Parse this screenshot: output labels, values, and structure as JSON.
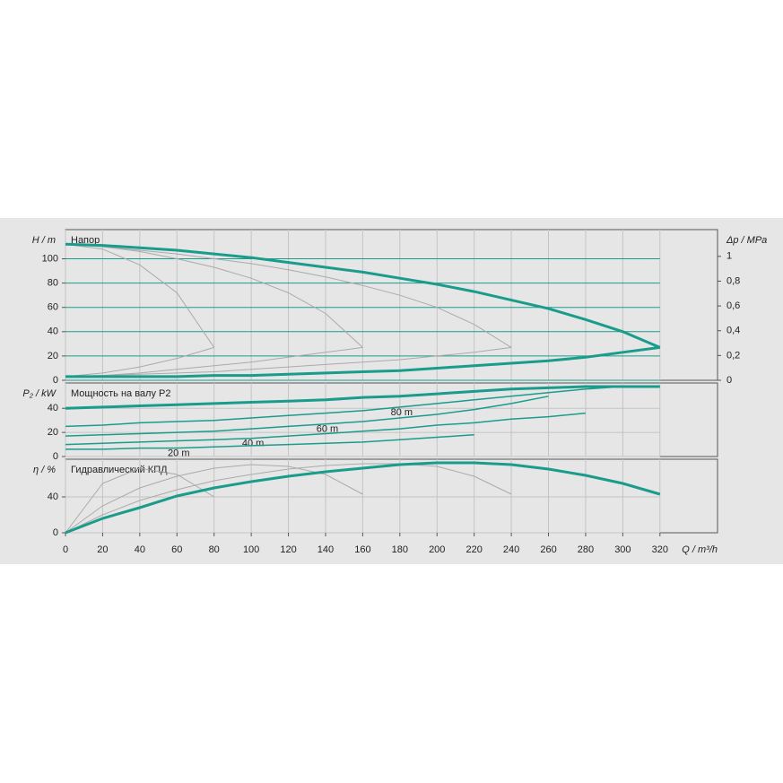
{
  "chart_data": [
    {
      "type": "line",
      "y_label": "H / m",
      "title": "Напор",
      "y2_label": "Δp / MPa",
      "xlim": [
        0,
        351
      ],
      "ylim": [
        0,
        124
      ],
      "yticks": [
        0,
        20,
        40,
        60,
        80,
        100
      ],
      "y2lim": [
        0,
        1.216
      ],
      "y2ticks": [
        0,
        {
          "value": 0.2,
          "label": "0,2"
        },
        {
          "value": 0.4,
          "label": "0,4"
        },
        {
          "value": 0.6,
          "label": "0,6"
        },
        {
          "value": 0.8,
          "label": "0,8"
        },
        1
      ],
      "grid": true,
      "grid_color": "#1a9c8c",
      "x": [
        0,
        20,
        40,
        60,
        80,
        100,
        120,
        140,
        160,
        180,
        200,
        220,
        240,
        260,
        280,
        300,
        320
      ],
      "series": [
        {
          "color": "#aaaaaa",
          "line_width": 1,
          "values": [
            112,
            108,
            95,
            72,
            27,
            null,
            null,
            null,
            null,
            null,
            null,
            null,
            null,
            null,
            null,
            null,
            null
          ]
        },
        {
          "color": "#aaaaaa",
          "line_width": 1,
          "values": [
            112,
            110,
            106,
            100,
            93,
            84,
            72,
            55,
            27,
            null,
            null,
            null,
            null,
            null,
            null,
            null,
            null
          ]
        },
        {
          "color": "#aaaaaa",
          "line_width": 1,
          "values": [
            112,
            110,
            107,
            104,
            100,
            96,
            91,
            85,
            78,
            70,
            60,
            46,
            27,
            null,
            null,
            null,
            null
          ]
        },
        {
          "color": "#aaaaaa",
          "line_width": 1,
          "values": [
            3,
            6,
            11,
            18,
            27,
            null,
            null,
            null,
            null,
            null,
            null,
            null,
            null,
            null,
            null,
            null,
            null
          ]
        },
        {
          "color": "#aaaaaa",
          "line_width": 1,
          "values": [
            3,
            4,
            6,
            9,
            12,
            15,
            19,
            23,
            27,
            null,
            null,
            null,
            null,
            null,
            null,
            null,
            null
          ]
        },
        {
          "color": "#aaaaaa",
          "line_width": 1,
          "values": [
            3,
            4,
            5,
            6,
            7,
            9,
            11,
            13,
            15,
            17,
            20,
            23,
            27,
            null,
            null,
            null,
            null
          ]
        },
        {
          "color": "#1a9c8c",
          "line_width": 3,
          "values": [
            112,
            111,
            109,
            107,
            104,
            101,
            97,
            93,
            89,
            84,
            79,
            73,
            66,
            59,
            50,
            40,
            27
          ]
        },
        {
          "color": "#1a9c8c",
          "line_width": 3,
          "values": [
            3,
            3,
            3,
            3,
            4,
            4,
            5,
            6,
            7,
            8,
            10,
            12,
            14,
            16,
            19,
            23,
            27
          ]
        }
      ]
    },
    {
      "type": "line",
      "y_label": "P₂ / kW",
      "title": "Мощность на валу P2",
      "xlim": [
        0,
        351
      ],
      "ylim": [
        0,
        61
      ],
      "yticks": [
        0,
        20,
        40
      ],
      "grid": true,
      "grid_color": "#c4c4c4",
      "x": [
        0,
        20,
        40,
        60,
        80,
        100,
        120,
        140,
        160,
        180,
        200,
        220,
        240,
        260,
        280,
        300,
        320
      ],
      "series": [
        {
          "color": "#1a9c8c",
          "line_width": 3,
          "values": [
            40,
            41,
            42,
            43,
            44,
            45,
            46,
            47,
            49,
            50,
            52,
            54,
            56,
            57,
            58,
            58,
            58
          ]
        },
        {
          "name": "80 m",
          "color": "#1a9c8c",
          "line_width": 1.5,
          "values": [
            25,
            26,
            28,
            29,
            30,
            32,
            34,
            36,
            38,
            41,
            44,
            47,
            50,
            53,
            56,
            58,
            null
          ]
        },
        {
          "name": "60 m",
          "color": "#1a9c8c",
          "line_width": 1.5,
          "values": [
            17,
            18,
            19,
            20,
            21,
            23,
            25,
            27,
            29,
            32,
            35,
            39,
            44,
            50,
            null,
            null,
            null
          ]
        },
        {
          "name": "40 m",
          "color": "#1a9c8c",
          "line_width": 1.5,
          "values": [
            10,
            11,
            12,
            13,
            14,
            15,
            17,
            19,
            21,
            23,
            26,
            28,
            31,
            33,
            36,
            null,
            null
          ]
        },
        {
          "name": "20 m",
          "color": "#1a9c8c",
          "line_width": 1.5,
          "values": [
            6,
            6,
            7,
            7,
            8,
            9,
            10,
            11,
            12,
            14,
            16,
            18,
            null,
            null,
            null,
            null,
            null
          ]
        }
      ]
    },
    {
      "type": "line",
      "y_label": "η / %",
      "title": "Гидравлический КПД",
      "x_label": "Q / m³/h",
      "xlim": [
        0,
        351
      ],
      "ylim": [
        0,
        82
      ],
      "yticks": [
        0,
        40
      ],
      "xticks": [
        0,
        20,
        40,
        60,
        80,
        100,
        120,
        140,
        160,
        180,
        200,
        220,
        240,
        260,
        280,
        300,
        320
      ],
      "grid": true,
      "grid_color": "#c4c4c4",
      "x": [
        0,
        20,
        40,
        60,
        80,
        100,
        120,
        140,
        160,
        180,
        200,
        220,
        240,
        260,
        280,
        300,
        320
      ],
      "series": [
        {
          "color": "#aaaaaa",
          "line_width": 1,
          "values": [
            0,
            55,
            72,
            65,
            40,
            null,
            null,
            null,
            null,
            null,
            null,
            null,
            null,
            null,
            null,
            null,
            null
          ]
        },
        {
          "color": "#aaaaaa",
          "line_width": 1,
          "values": [
            0,
            30,
            50,
            63,
            72,
            76,
            74,
            65,
            43,
            null,
            null,
            null,
            null,
            null,
            null,
            null,
            null
          ]
        },
        {
          "color": "#aaaaaa",
          "line_width": 1,
          "values": [
            0,
            20,
            36,
            48,
            58,
            65,
            71,
            75,
            77,
            77,
            74,
            63,
            43,
            null,
            null,
            null,
            null
          ]
        },
        {
          "color": "#1a9c8c",
          "line_width": 3,
          "values": [
            0,
            16,
            28,
            41,
            50,
            57,
            63,
            68,
            72,
            76,
            78,
            78,
            76,
            71,
            64,
            55,
            43
          ]
        }
      ]
    }
  ]
}
